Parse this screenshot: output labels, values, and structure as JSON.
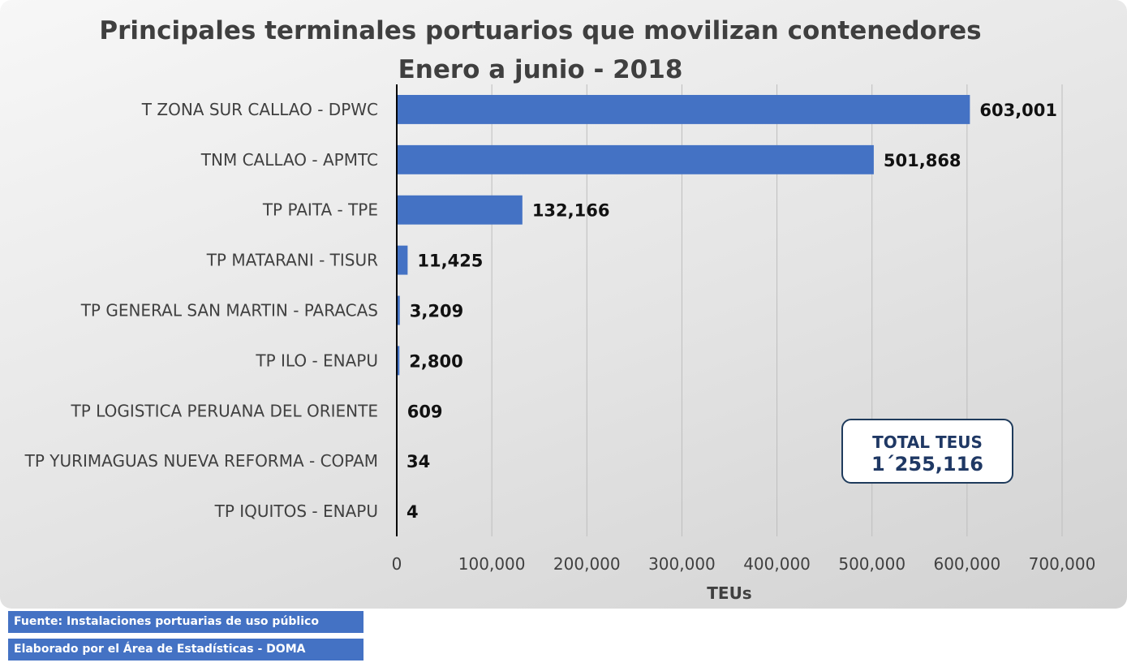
{
  "chart_data": {
    "type": "bar",
    "orientation": "horizontal",
    "title": "Principales terminales portuarios que movilizan contenedores",
    "subtitle": "Enero a junio - 2018",
    "xlabel": "TEUs",
    "ylabel": "",
    "xlim": [
      0,
      700000
    ],
    "x_ticks": [
      0,
      100000,
      200000,
      300000,
      400000,
      500000,
      600000,
      700000
    ],
    "x_tick_labels": [
      "0",
      "100,000",
      "200,000",
      "300,000",
      "400,000",
      "500,000",
      "600,000",
      "700,000"
    ],
    "grid": "vertical",
    "bar_color": "#4472c4",
    "categories": [
      "T ZONA SUR CALLAO - DPWC",
      "TNM CALLAO - APMTC",
      "TP PAITA - TPE",
      "TP MATARANI - TISUR",
      "TP GENERAL SAN MARTIN - PARACAS",
      "TP ILO - ENAPU",
      "TP LOGISTICA PERUANA DEL ORIENTE",
      "TP YURIMAGUAS NUEVA REFORMA - COPAM",
      "TP IQUITOS - ENAPU"
    ],
    "values": [
      603001,
      501868,
      132166,
      11425,
      3209,
      2800,
      609,
      34,
      4
    ],
    "data_labels": [
      "603,001",
      "501,868",
      "132,166",
      "11,425",
      "3,209",
      "2,800",
      "609",
      "34",
      "4"
    ]
  },
  "total_box": {
    "label": "TOTAL TEUS",
    "value": "1´255,116"
  },
  "notes": {
    "source": "Fuente: Instalaciones portuarias de uso público",
    "author": "Elaborado por el Área de Estadísticas - DOMA"
  },
  "colors": {
    "bar": "#4472c4",
    "note_background": "#4472c4",
    "total_box_text": "#1f3864"
  }
}
